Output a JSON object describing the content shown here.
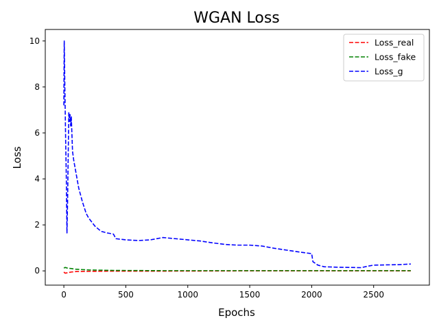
{
  "chart_data": {
    "type": "line",
    "title": "WGAN Loss",
    "xlabel": "Epochs",
    "ylabel": "Loss",
    "xlim": [
      -150,
      2950
    ],
    "ylim": [
      -0.62,
      10.5
    ],
    "xticks": [
      0,
      500,
      1000,
      1500,
      2000,
      2500
    ],
    "yticks": [
      0,
      2,
      4,
      6,
      8,
      10
    ],
    "grid": false,
    "legend_position": "top-right",
    "series": [
      {
        "name": "Loss_real",
        "color": "#ff0000",
        "style": "dashed",
        "points": [
          [
            0,
            -0.05
          ],
          [
            10,
            -0.1
          ],
          [
            30,
            -0.08
          ],
          [
            60,
            -0.05
          ],
          [
            100,
            -0.03
          ],
          [
            200,
            -0.02
          ],
          [
            400,
            -0.01
          ],
          [
            800,
            -0.01
          ],
          [
            1500,
            0.0
          ],
          [
            2000,
            0.0
          ],
          [
            2800,
            0.0
          ]
        ]
      },
      {
        "name": "Loss_fake",
        "color": "#008000",
        "style": "dashed",
        "points": [
          [
            0,
            0.12
          ],
          [
            10,
            0.15
          ],
          [
            30,
            0.12
          ],
          [
            60,
            0.1
          ],
          [
            100,
            0.07
          ],
          [
            200,
            0.04
          ],
          [
            400,
            0.02
          ],
          [
            800,
            0.01
          ],
          [
            1500,
            0.01
          ],
          [
            2000,
            0.01
          ],
          [
            2800,
            0.01
          ]
        ]
      },
      {
        "name": "Loss_g",
        "color": "#0000ff",
        "style": "dashed",
        "points": [
          [
            0,
            7.2
          ],
          [
            3,
            10.0
          ],
          [
            8,
            8.0
          ],
          [
            15,
            5.5
          ],
          [
            20,
            4.0
          ],
          [
            25,
            1.65
          ],
          [
            30,
            3.0
          ],
          [
            35,
            5.0
          ],
          [
            40,
            6.9
          ],
          [
            45,
            6.5
          ],
          [
            50,
            6.8
          ],
          [
            55,
            6.3
          ],
          [
            60,
            6.7
          ],
          [
            70,
            5.2
          ],
          [
            80,
            4.8
          ],
          [
            100,
            4.2
          ],
          [
            120,
            3.6
          ],
          [
            150,
            3.0
          ],
          [
            180,
            2.5
          ],
          [
            200,
            2.3
          ],
          [
            250,
            1.95
          ],
          [
            300,
            1.72
          ],
          [
            350,
            1.65
          ],
          [
            400,
            1.6
          ],
          [
            420,
            1.4
          ],
          [
            500,
            1.35
          ],
          [
            600,
            1.32
          ],
          [
            700,
            1.35
          ],
          [
            800,
            1.45
          ],
          [
            900,
            1.4
          ],
          [
            1000,
            1.35
          ],
          [
            1100,
            1.3
          ],
          [
            1200,
            1.22
          ],
          [
            1300,
            1.15
          ],
          [
            1400,
            1.12
          ],
          [
            1500,
            1.12
          ],
          [
            1600,
            1.08
          ],
          [
            1700,
            0.98
          ],
          [
            1800,
            0.9
          ],
          [
            1900,
            0.82
          ],
          [
            2000,
            0.75
          ],
          [
            2010,
            0.4
          ],
          [
            2050,
            0.25
          ],
          [
            2100,
            0.18
          ],
          [
            2200,
            0.16
          ],
          [
            2300,
            0.15
          ],
          [
            2400,
            0.14
          ],
          [
            2450,
            0.2
          ],
          [
            2500,
            0.25
          ],
          [
            2600,
            0.26
          ],
          [
            2700,
            0.27
          ],
          [
            2800,
            0.3
          ]
        ]
      }
    ]
  }
}
